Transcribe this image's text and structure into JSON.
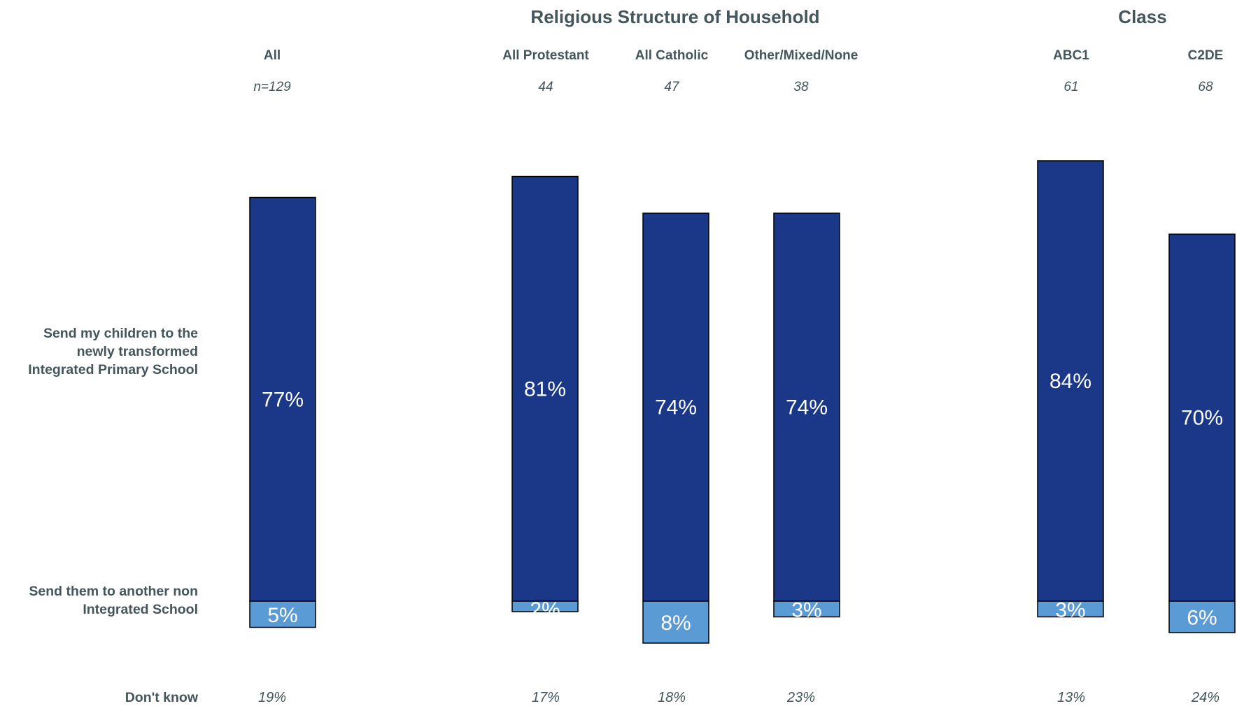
{
  "chart_data": {
    "type": "bar",
    "stacked": true,
    "group_titles": [
      "Religious Structure of Household",
      "Class"
    ],
    "categories": [
      "All",
      "All Protestant",
      "All Catholic",
      "Other/Mixed/None",
      "ABC1",
      "C2DE"
    ],
    "n_labels": [
      "n=129",
      "44",
      "47",
      "38",
      "61",
      "68"
    ],
    "series": [
      {
        "name": "Send my children to the newly transformed Integrated Primary School",
        "values": [
          77,
          81,
          74,
          74,
          84,
          70
        ],
        "labels": [
          "77%",
          "81%",
          "74%",
          "74%",
          "84%",
          "70%"
        ],
        "color": "#1b3888"
      },
      {
        "name": "Send them to another non Integrated School",
        "values": [
          5,
          2,
          8,
          3,
          3,
          6
        ],
        "labels": [
          "5%",
          "2%",
          "8%",
          "3%",
          "3%",
          "6%"
        ],
        "color": "#5b9bd5"
      }
    ],
    "row_labels": {
      "series1": [
        "Send my children to the",
        "newly transformed",
        "Integrated Primary School"
      ],
      "series2": [
        "Send them to another non",
        "Integrated School"
      ],
      "dont_know": "Don't know"
    },
    "dont_know_values": [
      "19%",
      "17%",
      "18%",
      "23%",
      "13%",
      "24%"
    ]
  }
}
